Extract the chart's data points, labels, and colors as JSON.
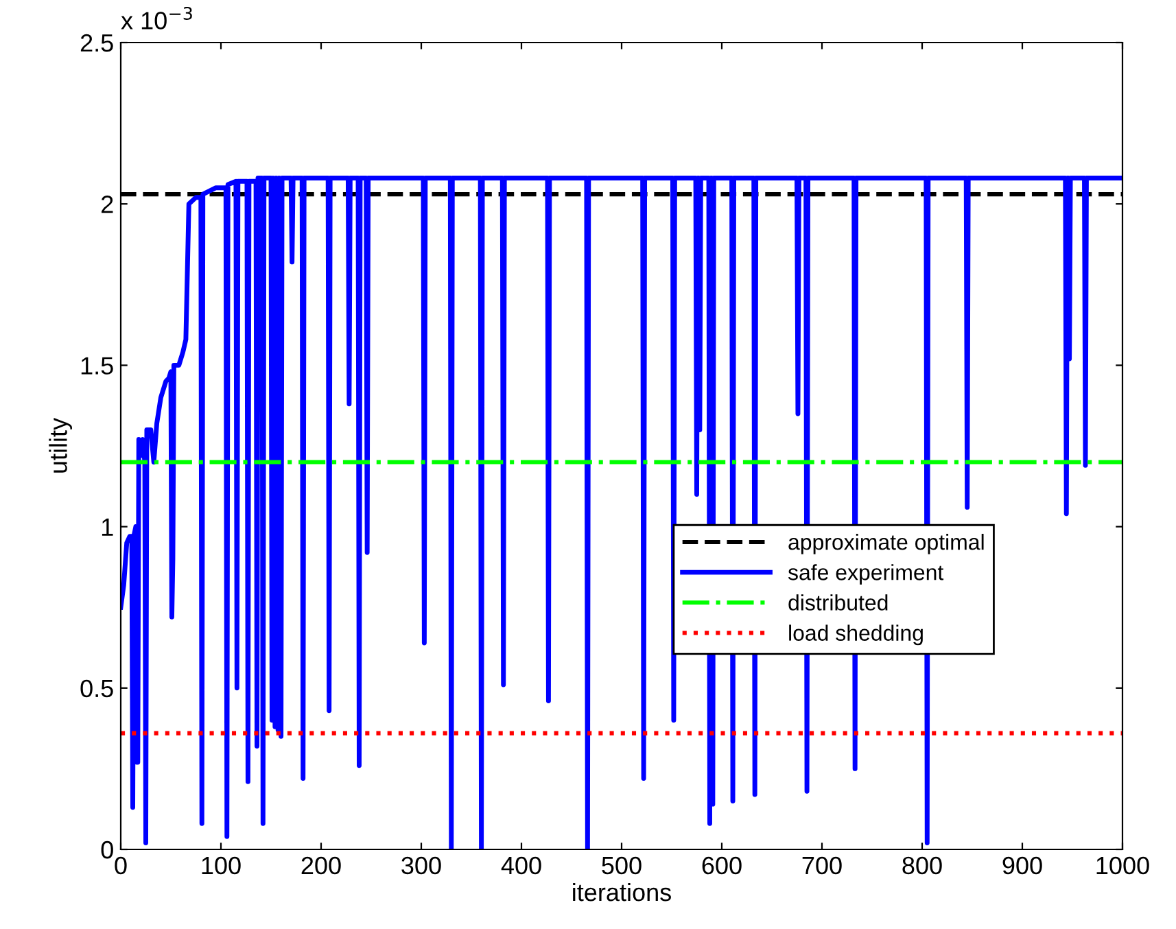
{
  "chart_data": {
    "type": "line",
    "xlabel": "iterations",
    "ylabel": "utility",
    "annotations": [
      "x 10$^{−3}$"
    ],
    "xlim": [
      0,
      1000
    ],
    "xticks": [
      0,
      100,
      200,
      300,
      400,
      500,
      600,
      700,
      800,
      900,
      1000
    ],
    "ylim": [
      0,
      2.5
    ],
    "yticks": [
      0,
      0.5,
      1,
      1.5,
      2,
      2.5
    ],
    "legend": "right",
    "grid": false,
    "marker": "none",
    "series": [
      {
        "name": "approximate optimal",
        "color": "#000000",
        "line_style": "dashed",
        "x": [
          0,
          1000
        ],
        "values": [
          2.03,
          2.03
        ]
      },
      {
        "name": "safe experiment",
        "color": "#0000ff",
        "line_style": "solid",
        "x": [
          0,
          3,
          6,
          9,
          11,
          12,
          13,
          15,
          16,
          17,
          18,
          20,
          22,
          24,
          25,
          26,
          30,
          33,
          36,
          40,
          45,
          48,
          50,
          51,
          52,
          53,
          58,
          62,
          65,
          68,
          75,
          80,
          81,
          82,
          95,
          105,
          106,
          107,
          115,
          116,
          117,
          126,
          127,
          128,
          135,
          136,
          137,
          141,
          142,
          143,
          150,
          151,
          152,
          154,
          155,
          157,
          158,
          160,
          161,
          170,
          171,
          172,
          181,
          182,
          183,
          207,
          208,
          209,
          227,
          228,
          229,
          237,
          238,
          239,
          245,
          246,
          247,
          302,
          303,
          304,
          329,
          330,
          331,
          359,
          360,
          361,
          381,
          382,
          383,
          426,
          427,
          428,
          465,
          466,
          467,
          521,
          522,
          523,
          551,
          552,
          553,
          574,
          575,
          576,
          577,
          578,
          579,
          587,
          588,
          589,
          590,
          591,
          592,
          610,
          611,
          612,
          632,
          633,
          634,
          675,
          676,
          677,
          684,
          685,
          686,
          732,
          733,
          734,
          804,
          805,
          806,
          844,
          845,
          846,
          943,
          944,
          945,
          946,
          947,
          948,
          962,
          963,
          964,
          1000
        ],
        "values": [
          0.75,
          0.82,
          0.95,
          0.97,
          0.97,
          0.13,
          0.97,
          1.0,
          0.27,
          0.27,
          1.27,
          1.22,
          1.27,
          1.2,
          0.02,
          1.3,
          1.3,
          1.2,
          1.32,
          1.4,
          1.45,
          1.46,
          1.48,
          0.72,
          0.9,
          1.5,
          1.5,
          1.54,
          1.58,
          2.0,
          2.02,
          2.02,
          0.08,
          2.03,
          2.05,
          2.05,
          0.04,
          2.06,
          2.07,
          0.5,
          2.07,
          2.07,
          0.21,
          2.07,
          2.07,
          0.32,
          2.08,
          2.08,
          0.08,
          2.08,
          2.08,
          0.4,
          2.08,
          0.38,
          2.08,
          0.37,
          2.08,
          0.35,
          2.08,
          2.08,
          1.82,
          2.08,
          2.08,
          0.22,
          2.08,
          2.08,
          0.43,
          2.08,
          2.08,
          1.38,
          2.08,
          2.08,
          0.26,
          2.08,
          2.08,
          0.92,
          2.08,
          2.08,
          0.64,
          2.08,
          2.08,
          0,
          2.08,
          2.08,
          0,
          2.08,
          2.08,
          0.51,
          2.08,
          2.08,
          0.46,
          2.08,
          2.08,
          0,
          2.08,
          2.08,
          0.22,
          2.08,
          2.08,
          0.4,
          2.08,
          2.08,
          1.1,
          2.08,
          2.08,
          1.3,
          2.08,
          2.08,
          0.08,
          2.08,
          2.08,
          0.14,
          2.08,
          2.08,
          0.15,
          2.08,
          2.08,
          0.17,
          2.08,
          2.08,
          1.35,
          2.08,
          2.08,
          0.18,
          2.08,
          2.08,
          0.25,
          2.08,
          2.08,
          0.02,
          2.08,
          2.08,
          1.06,
          2.08,
          2.08,
          1.04,
          2.08,
          2.08,
          1.52,
          2.08,
          2.08,
          1.19,
          2.08,
          2.08
        ]
      },
      {
        "name": "distributed",
        "color": "#00ff00",
        "line_style": "dashdot",
        "x": [
          0,
          1000
        ],
        "values": [
          1.2,
          1.2
        ]
      },
      {
        "name": "load shedding",
        "color": "#ff0000",
        "line_style": "dotted",
        "x": [
          0,
          1000
        ],
        "values": [
          0.36,
          0.36
        ]
      }
    ]
  }
}
